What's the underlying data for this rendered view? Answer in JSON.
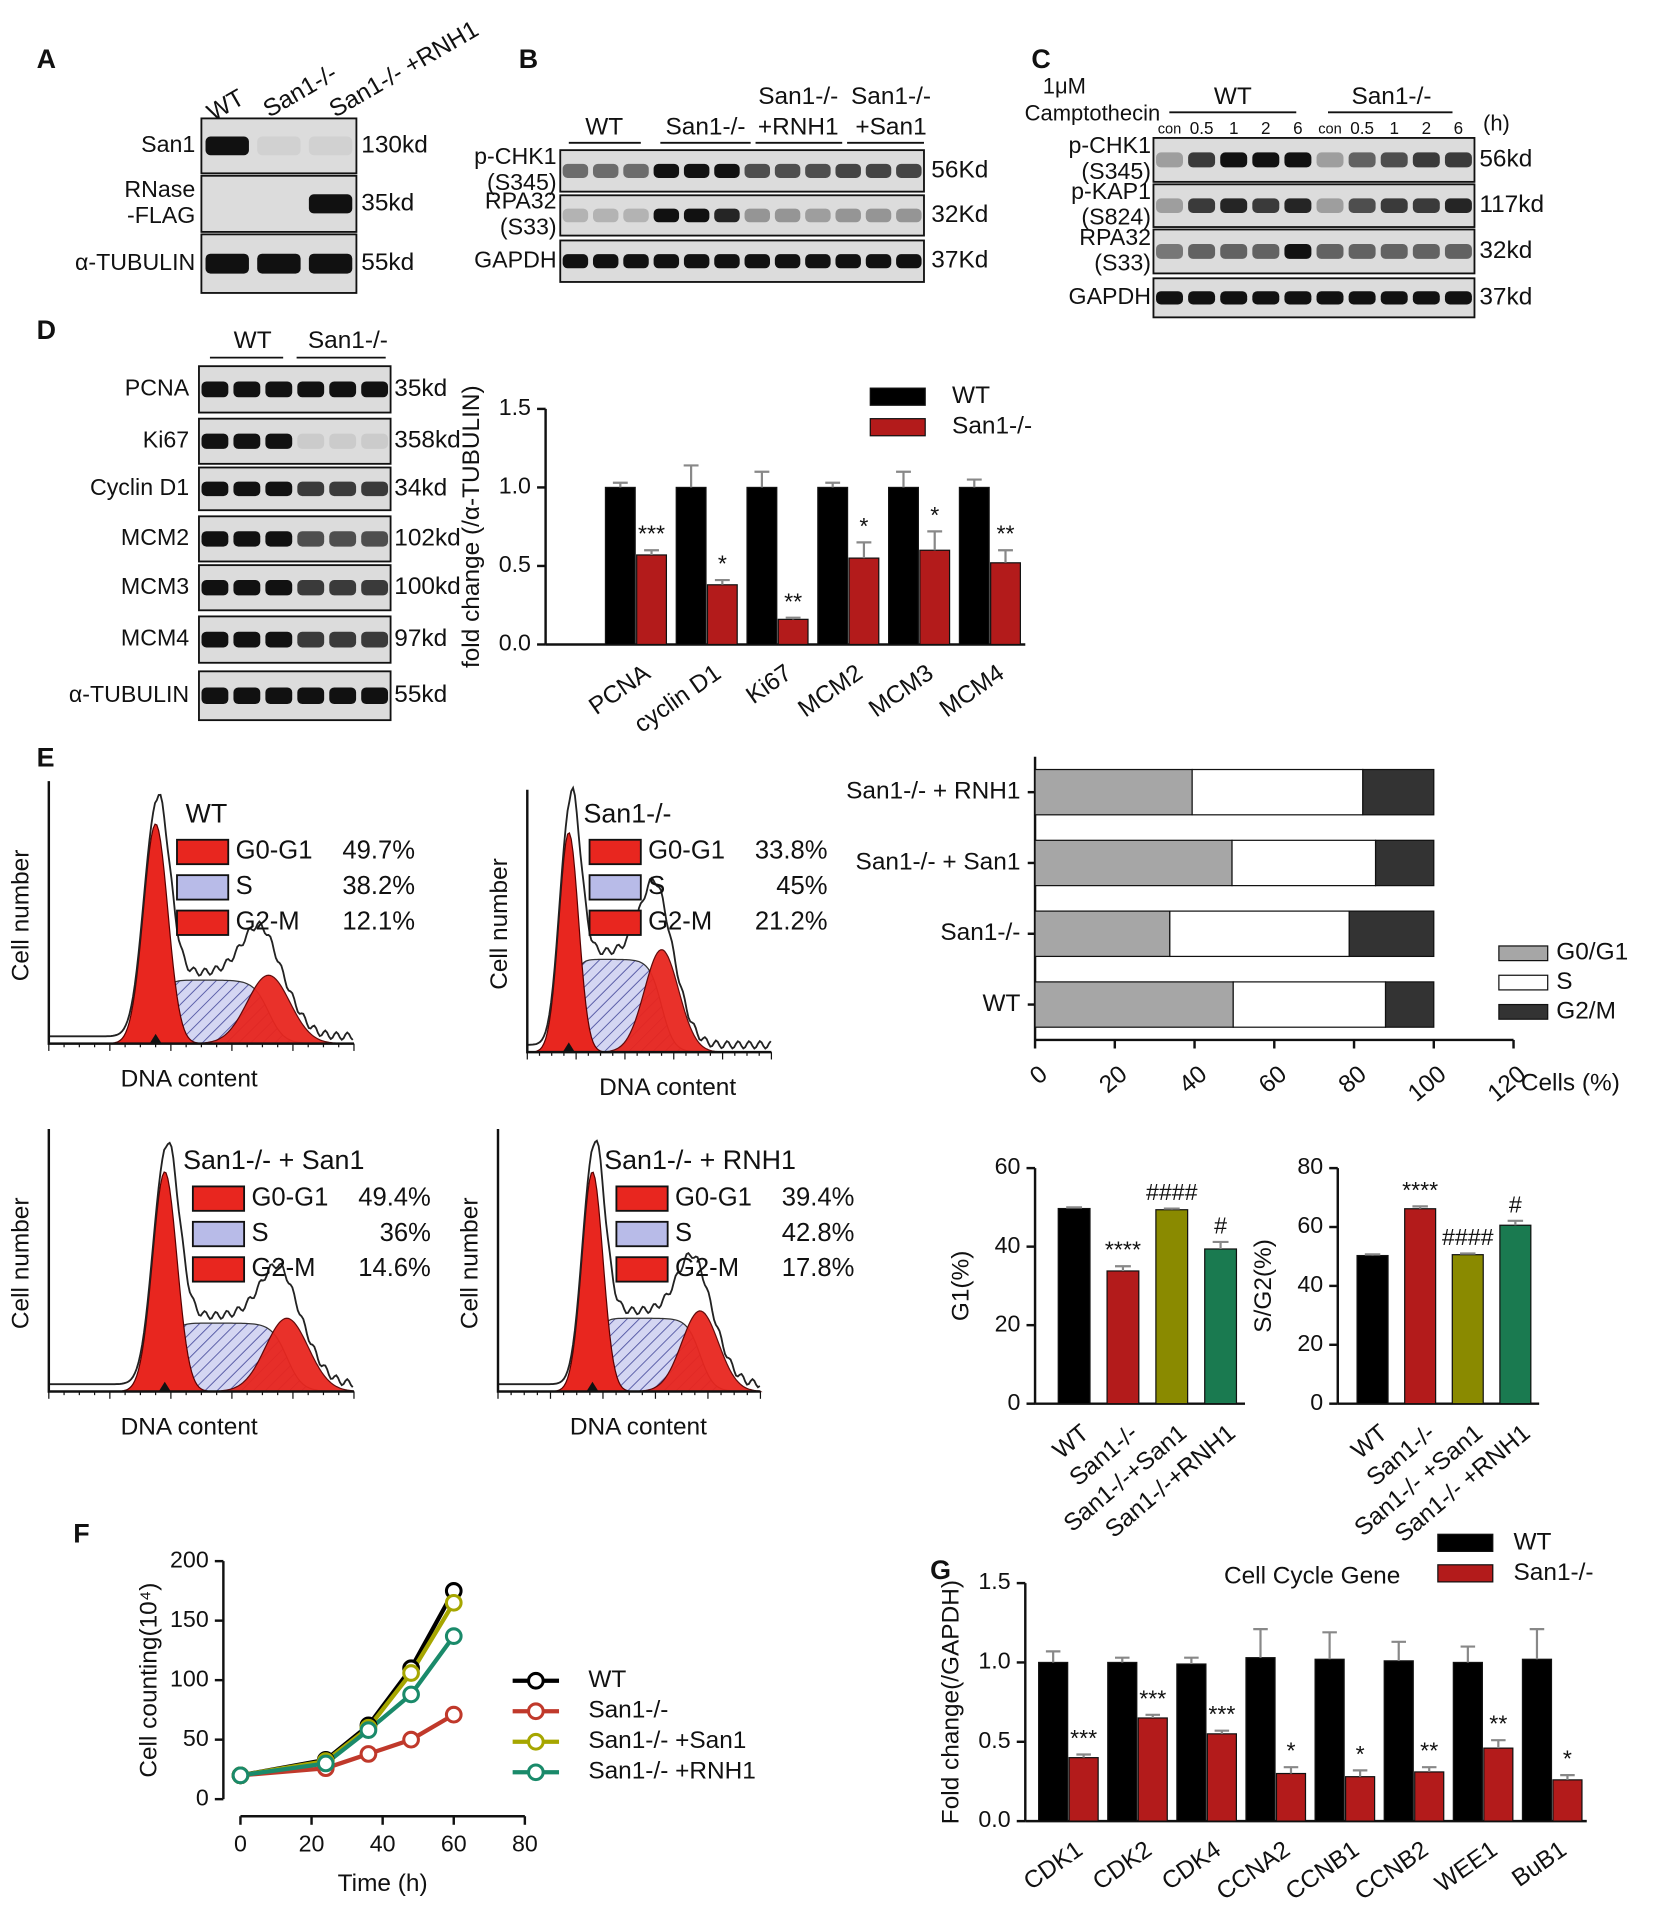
{
  "panel_letters": [
    "A",
    "B",
    "C",
    "D",
    "E",
    "F",
    "G"
  ],
  "blots": {
    "A": {
      "columns": [
        "WT",
        "San1-/-",
        "San1-/-  +RNH1"
      ],
      "rows": [
        {
          "label": [
            "San1"
          ],
          "size": "130kd"
        },
        {
          "label": [
            "RNase",
            "-FLAG"
          ],
          "size": "35kd"
        },
        {
          "label": [
            "α-TUBULIN"
          ],
          "size": "55kd"
        }
      ]
    },
    "B": {
      "groups": [
        [
          "WT"
        ],
        [
          "San1-/-"
        ],
        [
          "San1-/-",
          "+RNH1"
        ],
        [
          "San1-/-",
          "+San1"
        ]
      ],
      "rows": [
        {
          "label": [
            "p-CHK1",
            "(S345)"
          ],
          "size": "56Kd"
        },
        {
          "label": [
            "RPA32",
            "(S33)"
          ],
          "size": "32Kd"
        },
        {
          "label": [
            "GAPDH"
          ],
          "size": "37Kd"
        }
      ]
    },
    "C": {
      "treatment": [
        "1μM",
        "Camptothecin"
      ],
      "groups": [
        "WT",
        "San1-/-"
      ],
      "lanes": [
        "con",
        "0.5",
        "1",
        "2",
        "6",
        "con",
        "0.5",
        "1",
        "2",
        "6"
      ],
      "unit": "(h)",
      "rows": [
        {
          "label": [
            "p-CHK1",
            "(S345)"
          ],
          "size": "56kd"
        },
        {
          "label": [
            "p-KAP1",
            "(S824)"
          ],
          "size": "117kd"
        },
        {
          "label": [
            "RPA32",
            "(S33)"
          ],
          "size": "32kd"
        },
        {
          "label": [
            "GAPDH"
          ],
          "size": "37kd"
        }
      ]
    },
    "D": {
      "groups": [
        "WT",
        "San1-/-"
      ],
      "rows": [
        {
          "label": [
            "PCNA"
          ],
          "size": "35kd"
        },
        {
          "label": [
            "Ki67"
          ],
          "size": "358kd"
        },
        {
          "label": [
            "Cyclin D1"
          ],
          "size": "34kd"
        },
        {
          "label": [
            "MCM2"
          ],
          "size": "102kd"
        },
        {
          "label": [
            "MCM3"
          ],
          "size": "100kd"
        },
        {
          "label": [
            "MCM4"
          ],
          "size": "97kd"
        },
        {
          "label": [
            "α-TUBULIN"
          ],
          "size": "55kd"
        }
      ]
    }
  },
  "flow": [
    {
      "title": "WT",
      "xlabel": "DNA content",
      "ylabel": "Cell number",
      "phases": [
        {
          "name": "G0-G1",
          "value": "49.7%"
        },
        {
          "name": "S",
          "value": "38.2%"
        },
        {
          "name": "G2-M",
          "value": "12.1%"
        }
      ]
    },
    {
      "title": "San1-/-",
      "xlabel": "DNA content",
      "ylabel": "Cell number",
      "phases": [
        {
          "name": "G0-G1",
          "value": "33.8%"
        },
        {
          "name": "S",
          "value": "45%"
        },
        {
          "name": "G2-M",
          "value": "21.2%"
        }
      ]
    },
    {
      "title": "San1-/- + San1",
      "xlabel": "DNA content",
      "ylabel": "Cell number",
      "phases": [
        {
          "name": "G0-G1",
          "value": "49.4%"
        },
        {
          "name": "S",
          "value": "36%"
        },
        {
          "name": "G2-M",
          "value": "14.6%"
        }
      ]
    },
    {
      "title": "San1-/- + RNH1",
      "xlabel": "DNA content",
      "ylabel": "Cell number",
      "phases": [
        {
          "name": "G0-G1",
          "value": "39.4%"
        },
        {
          "name": "S",
          "value": "42.8%"
        },
        {
          "name": "G2-M",
          "value": "17.8%"
        }
      ]
    }
  ],
  "chart_data": [
    {
      "type": "bar",
      "ylabel": "fold change (/α-TUBULIN)",
      "categories": [
        "PCNA",
        "cyclin D1",
        "Ki67",
        "MCM2",
        "MCM3",
        "MCM4"
      ],
      "series": [
        {
          "name": "WT",
          "color": "#000000",
          "values": [
            1,
            1,
            1,
            1,
            1,
            1
          ],
          "errors": [
            0.03,
            0.14,
            0.1,
            0.03,
            0.1,
            0.05
          ]
        },
        {
          "name": "San1-/-",
          "color": "#b31b1b",
          "values": [
            0.57,
            0.38,
            0.16,
            0.55,
            0.6,
            0.52
          ],
          "errors": [
            0.03,
            0.03,
            0.01,
            0.1,
            0.12,
            0.08
          ],
          "annotations": [
            "***",
            "*",
            "**",
            "*",
            "*",
            "**"
          ]
        }
      ],
      "ylim": [
        0,
        1.5
      ],
      "yticks": [
        {
          "value": 0,
          "label": "0.0"
        },
        0.5,
        {
          "value": 1,
          "label": "1.0"
        },
        1.5
      ],
      "legend": "upper right"
    },
    {
      "type": "barh",
      "stacked": true,
      "xlabel": "Cells (%)",
      "categories": [
        "San1-/- + RNH1",
        "San1-/- + San1",
        "San1-/-",
        "WT"
      ],
      "series": [
        {
          "name": "G0/G1",
          "color": "#a6a6a6",
          "values": [
            39.4,
            49.4,
            33.8,
            49.7
          ]
        },
        {
          "name": "S",
          "color": "#ffffff",
          "values": [
            42.8,
            36,
            45,
            38.2
          ]
        },
        {
          "name": "G2/M",
          "color": "#333333",
          "values": [
            17.8,
            14.6,
            21.2,
            12.1
          ]
        }
      ],
      "xlim": [
        0,
        120
      ],
      "xticks": [
        0,
        20,
        40,
        60,
        80,
        100,
        120
      ],
      "legend": "right"
    },
    {
      "type": "bar",
      "ylabel": "G1(%)",
      "categories": [
        "WT",
        "San1-/-",
        "San1-/-+San1",
        "San1-/-+RNH1"
      ],
      "values": [
        49.7,
        33.8,
        49.4,
        39.4
      ],
      "errors": [
        0.3,
        1.2,
        0.3,
        1.8
      ],
      "colors": [
        "#000000",
        "#b31b1b",
        "#8a8a00",
        "#1a7a50"
      ],
      "annotations": [
        null,
        "****",
        "####",
        "#"
      ],
      "ylim": [
        0,
        60
      ],
      "yticks": [
        0,
        20,
        40,
        60
      ]
    },
    {
      "type": "bar",
      "ylabel": "S/G2(%)",
      "categories": [
        "WT",
        "San1-/-",
        "San1-/- +San1",
        "San1-/- +RNH1"
      ],
      "values": [
        50.3,
        66.2,
        50.6,
        60.6
      ],
      "errors": [
        0.4,
        0.8,
        0.4,
        1.5
      ],
      "colors": [
        "#000000",
        "#b31b1b",
        "#8a8a00",
        "#1a7a50"
      ],
      "annotations": [
        null,
        "****",
        "####",
        "#"
      ],
      "ylim": [
        0,
        80
      ],
      "yticks": [
        0,
        20,
        40,
        60,
        80
      ]
    },
    {
      "type": "line",
      "ylabel": "Cell counting(10⁴)",
      "xlabel": "Time (h)",
      "x": [
        0,
        24,
        36,
        48,
        60
      ],
      "series": [
        {
          "name": "WT",
          "color": "#000000",
          "values": [
            20,
            33,
            62,
            110,
            175
          ]
        },
        {
          "name": "San1-/-",
          "color": "#c0392b",
          "values": [
            20,
            26,
            38,
            50,
            71
          ]
        },
        {
          "name": "San1-/- +San1",
          "color": "#a6a600",
          "values": [
            20,
            32,
            60,
            106,
            165
          ]
        },
        {
          "name": "San1-/- +RNH1",
          "color": "#1a8a6a",
          "values": [
            20,
            30,
            58,
            88,
            137
          ]
        }
      ],
      "xlim": [
        0,
        80
      ],
      "xticks": [
        0,
        20,
        40,
        60,
        80
      ],
      "ylim": [
        0,
        200
      ],
      "yticks": [
        0,
        50,
        100,
        150,
        200
      ],
      "legend": "right"
    },
    {
      "type": "bar",
      "title": "Cell Cycle Gene",
      "ylabel": "Fold change(/GAPDH)",
      "categories": [
        "CDK1",
        "CDK2",
        "CDK4",
        "CCNA2",
        "CCNB1",
        "CCNB2",
        "WEE1",
        "BuB1"
      ],
      "series": [
        {
          "name": "WT",
          "color": "#000000",
          "values": [
            1,
            1,
            0.99,
            1.03,
            1.02,
            1.01,
            1,
            1.02
          ],
          "errors": [
            0.07,
            0.03,
            0.04,
            0.18,
            0.17,
            0.12,
            0.1,
            0.19
          ]
        },
        {
          "name": "San1-/-",
          "color": "#b31b1b",
          "values": [
            0.4,
            0.65,
            0.55,
            0.3,
            0.28,
            0.31,
            0.46,
            0.26
          ],
          "errors": [
            0.02,
            0.02,
            0.02,
            0.04,
            0.04,
            0.03,
            0.05,
            0.03
          ],
          "annotations": [
            "***",
            "***",
            "***",
            "*",
            "*",
            "**",
            "**",
            "*"
          ]
        }
      ],
      "ylim": [
        0,
        1.5
      ],
      "yticks": [
        {
          "value": 0,
          "label": "0.0"
        },
        0.5,
        {
          "value": 1,
          "label": "1.0"
        },
        1.5
      ],
      "legend": "upper right"
    }
  ]
}
